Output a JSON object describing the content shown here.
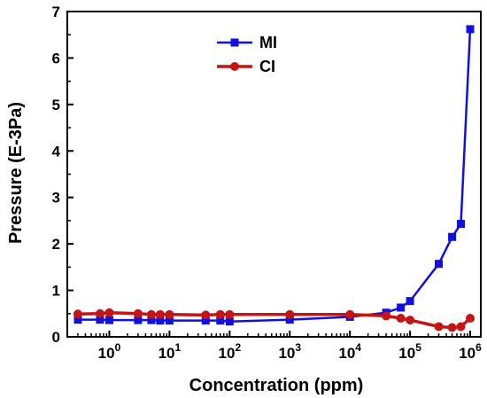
{
  "chart_data": {
    "type": "line",
    "xlabel": "Concentration (ppm)",
    "ylabel": "Pressure (E-3Pa)",
    "xscale": "log",
    "xlim": [
      0.2,
      1500000
    ],
    "ylim": [
      0,
      7
    ],
    "x_ticks": [
      {
        "base": "10",
        "exp": "0",
        "value": 1
      },
      {
        "base": "10",
        "exp": "1",
        "value": 10
      },
      {
        "base": "10",
        "exp": "2",
        "value": 100
      },
      {
        "base": "10",
        "exp": "3",
        "value": 1000
      },
      {
        "base": "10",
        "exp": "4",
        "value": 10000
      },
      {
        "base": "10",
        "exp": "5",
        "value": 100000
      },
      {
        "base": "10",
        "exp": "6",
        "value": 1000000
      }
    ],
    "y_ticks": [
      "0",
      "1",
      "2",
      "3",
      "4",
      "5",
      "6",
      "7"
    ],
    "grid": false,
    "legend_position": "top-center",
    "series": [
      {
        "name": "MI",
        "color": "#1010e0",
        "marker": "square",
        "x": [
          0.3,
          0.7,
          1,
          3,
          5,
          7,
          10,
          40,
          70,
          100,
          1000,
          10000,
          40000,
          70000,
          100000,
          300000,
          500000,
          700000,
          1000000
        ],
        "y": [
          0.37,
          0.37,
          0.36,
          0.36,
          0.36,
          0.35,
          0.35,
          0.35,
          0.35,
          0.33,
          0.37,
          0.43,
          0.52,
          0.63,
          0.77,
          1.57,
          2.15,
          2.43,
          6.62
        ]
      },
      {
        "name": "CI",
        "color": "#c41414",
        "marker": "circle",
        "x": [
          0.3,
          0.7,
          1,
          3,
          5,
          7,
          10,
          40,
          70,
          100,
          1000,
          10000,
          40000,
          70000,
          100000,
          300000,
          500000,
          700000,
          1000000
        ],
        "y": [
          0.49,
          0.5,
          0.52,
          0.5,
          0.48,
          0.48,
          0.48,
          0.47,
          0.48,
          0.48,
          0.48,
          0.48,
          0.45,
          0.4,
          0.36,
          0.22,
          0.2,
          0.22,
          0.4
        ]
      }
    ]
  }
}
